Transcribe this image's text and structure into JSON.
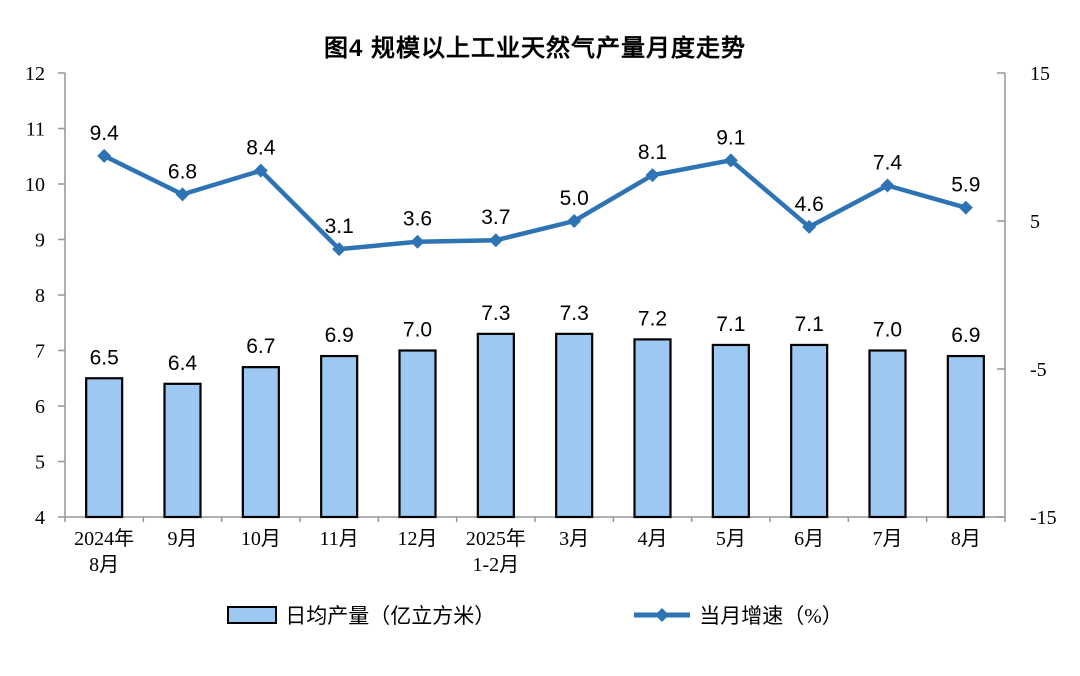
{
  "title": "图4 规模以上工业天然气产量月度走势",
  "chart_data": {
    "type": "bar",
    "subtype": "bar+line combo, dual axis",
    "title": "图4 规模以上工业天然气产量月度走势",
    "categories": [
      [
        "2024年",
        "8月"
      ],
      [
        "9月"
      ],
      [
        "10月"
      ],
      [
        "11月"
      ],
      [
        "12月"
      ],
      [
        "2025年",
        "1-2月"
      ],
      [
        "3月"
      ],
      [
        "4月"
      ],
      [
        "5月"
      ],
      [
        "6月"
      ],
      [
        "7月"
      ],
      [
        "8月"
      ]
    ],
    "series": [
      {
        "name": "日均产量（亿立方米）",
        "type": "bar",
        "axis": "left",
        "values": [
          6.5,
          6.4,
          6.7,
          6.9,
          7.0,
          7.3,
          7.3,
          7.2,
          7.1,
          7.1,
          7.0,
          6.9
        ]
      },
      {
        "name": "当月增速（%）",
        "type": "line",
        "axis": "right",
        "values": [
          9.4,
          6.8,
          8.4,
          3.1,
          3.6,
          3.7,
          5.0,
          8.1,
          9.1,
          4.6,
          7.4,
          5.9
        ]
      }
    ],
    "left_axis": {
      "min": 4,
      "max": 12,
      "ticks": [
        4,
        5,
        6,
        7,
        8,
        9,
        10,
        11,
        12
      ]
    },
    "right_axis": {
      "min": -15,
      "max": 15,
      "ticks": [
        -15,
        -5,
        5,
        15
      ]
    },
    "grid": false,
    "legend_position": "bottom",
    "data_labels": true
  },
  "legend": {
    "bar_label": "日均产量（亿立方米）",
    "line_label": "当月增速（%）"
  },
  "colors": {
    "bar_fill": "#9DC8F2",
    "bar_border": "#000000",
    "line": "#2E74B4",
    "axis": "#969696",
    "text": "#000000",
    "background": "#FFFFFF"
  }
}
